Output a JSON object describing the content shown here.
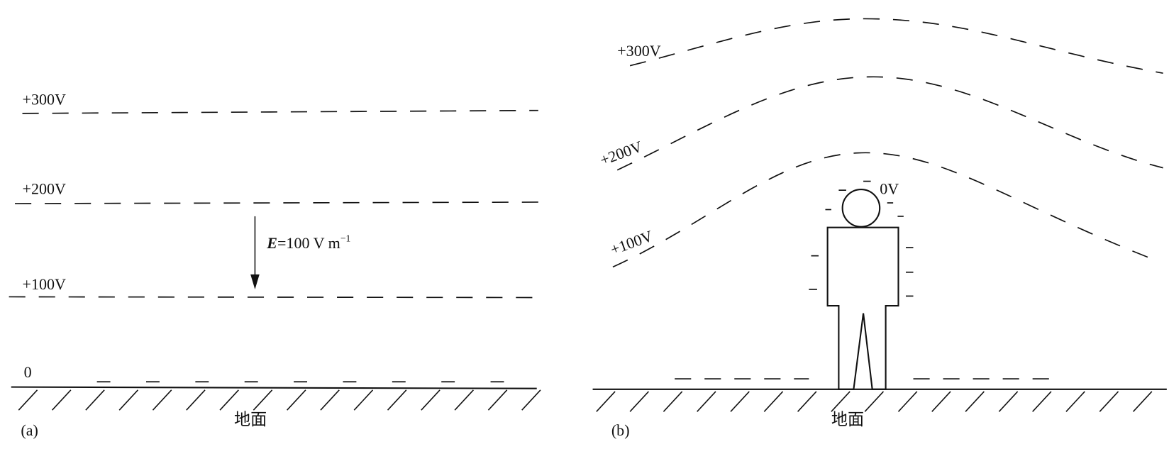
{
  "panel_a": {
    "label": "(a)",
    "ground": "地面",
    "equipotentials": [
      "+300V",
      "+200V",
      "+100V",
      "0"
    ],
    "field": {
      "symbol": "E",
      "value": "=100 V m",
      "exponent": "−1"
    }
  },
  "panel_b": {
    "label": "(b)",
    "ground": "地面",
    "equipotentials": [
      "+300V",
      "+200V",
      "+100V"
    ],
    "person_label": "0V"
  }
}
